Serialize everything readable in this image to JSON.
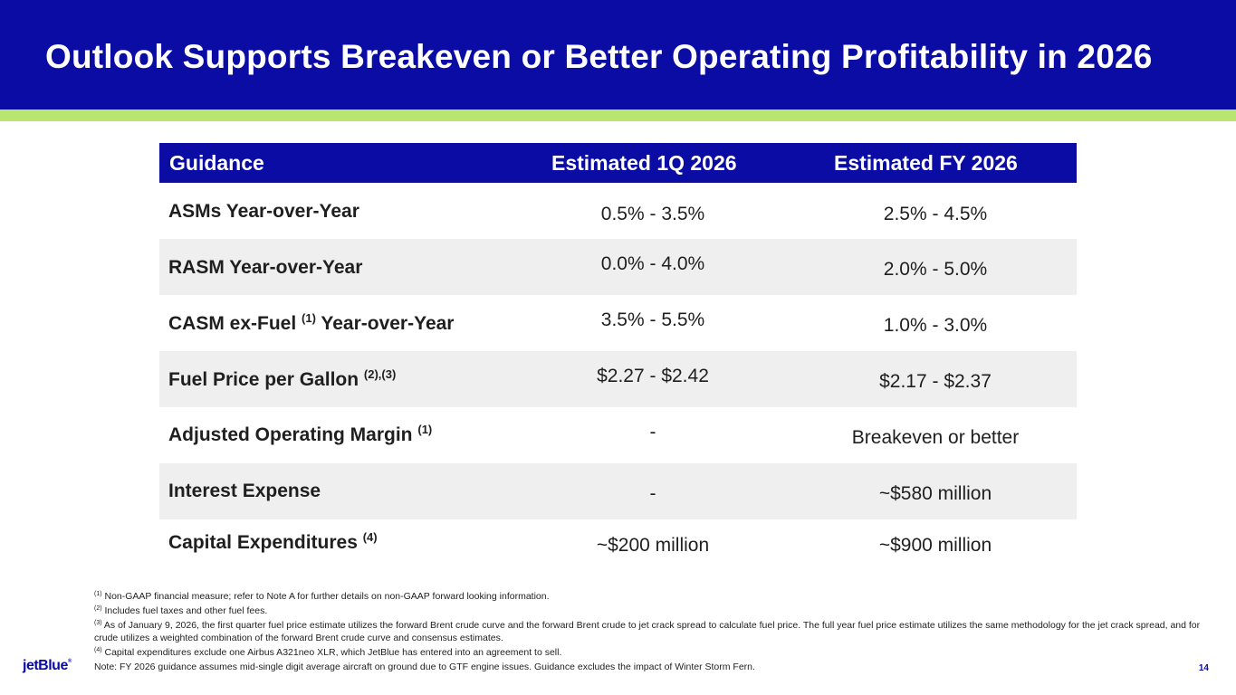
{
  "header": {
    "title": "Outlook Supports Breakeven or Better Operating Profitability in 2026"
  },
  "table": {
    "columns": [
      "Guidance",
      "Estimated 1Q 2026",
      "Estimated FY 2026"
    ],
    "rows": [
      {
        "label": "ASMs Year-over-Year",
        "sup": "",
        "label_suffix": "",
        "q1": "0.5% - 3.5%",
        "fy": "2.5% - 4.5%"
      },
      {
        "label": "RASM Year-over-Year",
        "sup": "",
        "label_suffix": "",
        "q1": "0.0% - 4.0%",
        "fy": "2.0% - 5.0%"
      },
      {
        "label": "CASM ex-Fuel ",
        "sup": "(1)",
        "label_suffix": " Year-over-Year",
        "q1": "3.5% - 5.5%",
        "fy": "1.0% - 3.0%"
      },
      {
        "label": "Fuel Price per Gallon ",
        "sup": "(2),(3)",
        "label_suffix": "",
        "q1": "$2.27 - $2.42",
        "fy": "$2.17 - $2.37"
      },
      {
        "label": "Adjusted Operating Margin ",
        "sup": "(1)",
        "label_suffix": "",
        "q1": "-",
        "fy": "Breakeven or better"
      },
      {
        "label": "Interest Expense",
        "sup": "",
        "label_suffix": "",
        "q1": "-",
        "fy": "~$580 million"
      },
      {
        "label": "Capital Expenditures ",
        "sup": "(4)",
        "label_suffix": "",
        "q1": "~$200 million",
        "fy": "~$900 million"
      }
    ]
  },
  "footnotes": [
    {
      "marker": "(1)",
      "text": " Non-GAAP financial measure; refer to Note A for further details on non-GAAP forward looking information."
    },
    {
      "marker": "(2)",
      "text": " Includes fuel taxes and other fuel fees."
    },
    {
      "marker": "(3)",
      "text": " As of January 9, 2026, the first quarter fuel price estimate utilizes the forward Brent crude curve and the forward Brent crude to jet crack spread to calculate fuel price. The full year fuel price estimate utilizes the same methodology for the jet crack spread, and for crude utilizes a weighted combination of the forward Brent crude curve and consensus estimates."
    },
    {
      "marker": "(4)",
      "text": " Capital expenditures exclude one Airbus A321neo XLR, which JetBlue has entered into an agreement to sell."
    },
    {
      "marker": "",
      "text": "Note: FY 2026 guidance assumes mid-single digit average aircraft on ground due to GTF engine issues. Guidance excludes the impact of Winter Storm Fern."
    }
  ],
  "footer": {
    "logo": "jetBlue",
    "page_number": "14"
  },
  "colors": {
    "brand_blue": "#0a0ca3",
    "accent_green": "#b7e56f",
    "row_alt": "#efefef"
  }
}
